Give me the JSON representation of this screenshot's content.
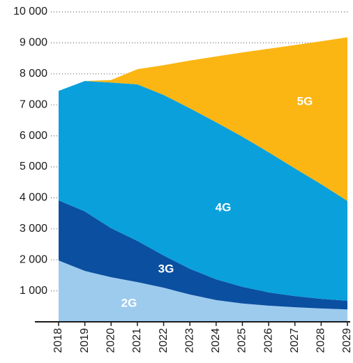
{
  "chart_data": {
    "type": "stacked_area",
    "categories": [
      "2018",
      "2019",
      "2020",
      "2021",
      "2022",
      "2023",
      "2024",
      "2025",
      "2026",
      "2027",
      "2028",
      "2029"
    ],
    "series": [
      {
        "name": "2G",
        "color": "#9ccbee",
        "values": [
          1980,
          1640,
          1440,
          1280,
          1100,
          880,
          700,
          590,
          520,
          470,
          430,
          400
        ]
      },
      {
        "name": "3G",
        "color": "#0b4fa0",
        "values": [
          1940,
          1920,
          1580,
          1330,
          1040,
          830,
          670,
          540,
          430,
          360,
          310,
          280
        ]
      },
      {
        "name": "4G",
        "color": "#0aa0dc",
        "values": [
          3530,
          4210,
          4700,
          5050,
          5180,
          5180,
          5070,
          4840,
          4520,
          4120,
          3700,
          3220
        ]
      },
      {
        "name": "5G",
        "color": "#fbb614",
        "values": [
          0,
          0,
          80,
          490,
          960,
          1540,
          2120,
          2720,
          3340,
          3980,
          4610,
          5280
        ]
      }
    ],
    "ylim": [
      0,
      10000
    ],
    "yticks": [
      {
        "value": 1000,
        "label": "1 000"
      },
      {
        "value": 2000,
        "label": "2 000"
      },
      {
        "value": 3000,
        "label": "3 000"
      },
      {
        "value": 4000,
        "label": "4 000"
      },
      {
        "value": 5000,
        "label": "5 000"
      },
      {
        "value": 6000,
        "label": "6 000"
      },
      {
        "value": 7000,
        "label": "7 000"
      },
      {
        "value": 8000,
        "label": "8 000"
      },
      {
        "value": 9000,
        "label": "9 000"
      },
      {
        "value": 10000,
        "label": "10 000"
      }
    ],
    "grid": true
  }
}
